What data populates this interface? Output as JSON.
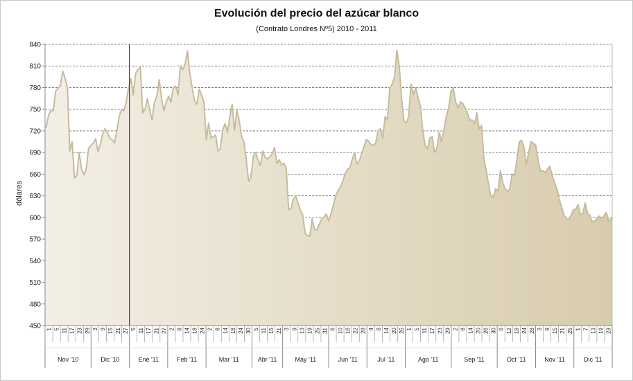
{
  "chart_data": {
    "type": "area",
    "title": "Evolución del precio del azúcar blanco",
    "subtitle": "(Contrato Londres Nº5)  2010  -  2011",
    "ylabel": "dólares",
    "xlabel": "",
    "ylim": [
      450,
      840
    ],
    "yticks": [
      450,
      480,
      510,
      540,
      570,
      600,
      630,
      660,
      690,
      720,
      750,
      780,
      810,
      840
    ],
    "grid": true,
    "legend": "none",
    "fill_color_start": "#f3efe6",
    "fill_color_end": "#d8ccad",
    "line_color": "#c6bc9c",
    "marker_line_color": "#a01818",
    "marker_after_month": "Dic '10",
    "months": [
      {
        "label": "Nov '10",
        "days": [
          "1",
          "5",
          "11",
          "17",
          "23",
          "29"
        ]
      },
      {
        "label": "Dic '10",
        "days": [
          "3",
          "9",
          "15",
          "21",
          "27"
        ]
      },
      {
        "label": "Ene '11",
        "days": [
          "5",
          "11",
          "17",
          "21",
          "27"
        ]
      },
      {
        "label": "Feb '11",
        "days": [
          "2",
          "8",
          "14",
          "18",
          "24"
        ]
      },
      {
        "label": "Mar '11",
        "days": [
          "2",
          "8",
          "14",
          "18",
          "24",
          "30"
        ]
      },
      {
        "label": "Abr '11",
        "days": [
          "5",
          "11",
          "15",
          "21"
        ]
      },
      {
        "label": "May '11",
        "days": [
          "3",
          "9",
          "13",
          "19",
          "25",
          "31"
        ]
      },
      {
        "label": "Jun '11",
        "days": [
          "6",
          "10",
          "16",
          "22",
          "28"
        ]
      },
      {
        "label": "Jul '11",
        "days": [
          "4",
          "8",
          "14",
          "20",
          "26"
        ]
      },
      {
        "label": "Ago '11",
        "days": [
          "1",
          "5",
          "11",
          "17",
          "23",
          "29"
        ]
      },
      {
        "label": "Sep '11",
        "days": [
          "2",
          "8",
          "14",
          "20",
          "26",
          "30"
        ]
      },
      {
        "label": "Oct '11",
        "days": [
          "6",
          "12",
          "18",
          "24",
          "28"
        ]
      },
      {
        "label": "Nov '11",
        "days": [
          "3",
          "9",
          "15",
          "21",
          "25"
        ]
      },
      {
        "label": "Dic '11",
        "days": [
          "1",
          "7",
          "13",
          "19",
          "23"
        ]
      }
    ],
    "series": [
      {
        "values": [
          725,
          742,
          748,
          748,
          775,
          779,
          783,
          803,
          793,
          780,
          692,
          705,
          655,
          658,
          690,
          667,
          659,
          668,
          696,
          700,
          703,
          709,
          691,
          702,
          716,
          723,
          717,
          710,
          708,
          703,
          720,
          740,
          750,
          748,
          760,
          780,
          792,
          770,
          800,
          805,
          808,
          745,
          750,
          765,
          748,
          735,
          760,
          768,
          791,
          765,
          748,
          760,
          768,
          760,
          780,
          782,
          770,
          810,
          805,
          812,
          831,
          800,
          780,
          762,
          757,
          778,
          770,
          760,
          708,
          731,
          710,
          712,
          714,
          692,
          695,
          722,
          730,
          718,
          740,
          757,
          721,
          749,
          735,
          712,
          705,
          680,
          650,
          656,
          685,
          690,
          680,
          672,
          692,
          683,
          681,
          684,
          688,
          697,
          675,
          680,
          673,
          675,
          668,
          611,
          612,
          625,
          630,
          620,
          610,
          603,
          578,
          575,
          574,
          598,
          583,
          583,
          590,
          598,
          600,
          605,
          595,
          605,
          617,
          630,
          637,
          642,
          650,
          660,
          667,
          669,
          680,
          690,
          674,
          678,
          688,
          698,
          708,
          706,
          701,
          700,
          703,
          720,
          723,
          710,
          740,
          736,
          780,
          785,
          795,
          832,
          810,
          765,
          733,
          731,
          740,
          785,
          770,
          780,
          766,
          755,
          720,
          700,
          695,
          710,
          712,
          690,
          695,
          718,
          705,
          722,
          740,
          752,
          775,
          779,
          760,
          752,
          760,
          758,
          752,
          745,
          735,
          735,
          730,
          745,
          722,
          728,
          680,
          665,
          645,
          628,
          628,
          640,
          636,
          665,
          648,
          640,
          636,
          640,
          660,
          658,
          680,
          705,
          707,
          698,
          673,
          690,
          705,
          703,
          700,
          680,
          664,
          665,
          662,
          667,
          671,
          658,
          648,
          640,
          625,
          615,
          603,
          598,
          597,
          603,
          611,
          611,
          618,
          604,
          605,
          620,
          606,
          603,
          594,
          595,
          598,
          602,
          598,
          602,
          607,
          595,
          598
        ]
      }
    ]
  }
}
